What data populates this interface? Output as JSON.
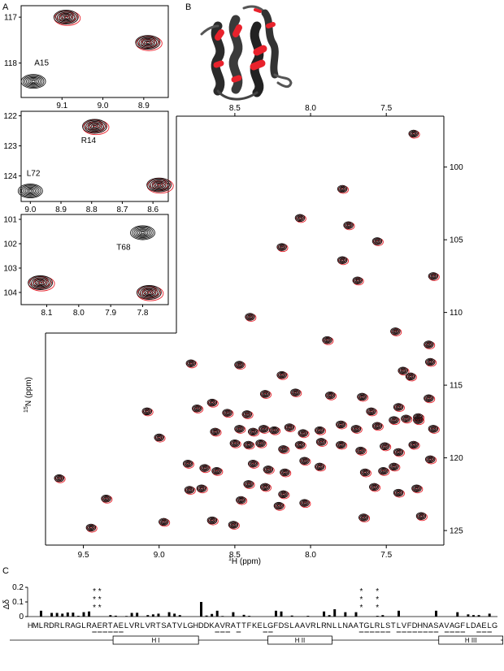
{
  "panels": {
    "A": "A",
    "B": "B",
    "C": "C"
  },
  "colors": {
    "ref": "#111111",
    "pert": "#e8222c",
    "star": "#e8222c",
    "frame": "#000000"
  },
  "main_spectrum": {
    "type": "scatter",
    "xlabel_sup": "1",
    "xlabel": "H (ppm)",
    "ylabel_sup": "15",
    "ylabel": "N (ppm)",
    "xlim": [
      9.75,
      7.12
    ],
    "ylim": [
      96.5,
      126.0
    ],
    "xticks": [
      "9.5",
      "9.0",
      "8.5",
      "8.0",
      "7.5"
    ],
    "xtick_values": [
      9.5,
      9.0,
      8.5,
      8.0,
      7.5
    ],
    "yticks": [
      "100",
      "105",
      "110",
      "115",
      "120",
      "125"
    ],
    "ytick_values": [
      100,
      105,
      110,
      115,
      120,
      125
    ],
    "top_xticks": [
      "8.5",
      "8.0",
      "7.5"
    ],
    "top_xtick_values": [
      8.5,
      8.0,
      7.5
    ],
    "peaks": [
      [
        7.32,
        97.7
      ],
      [
        7.79,
        101.5
      ],
      [
        8.07,
        103.5
      ],
      [
        7.75,
        104.0
      ],
      [
        8.19,
        105.5
      ],
      [
        7.56,
        105.1
      ],
      [
        7.79,
        106.4
      ],
      [
        7.19,
        107.5
      ],
      [
        7.69,
        107.8
      ],
      [
        8.4,
        110.3
      ],
      [
        7.89,
        111.9
      ],
      [
        7.44,
        111.3
      ],
      [
        7.22,
        112.2
      ],
      [
        7.21,
        113.4
      ],
      [
        8.79,
        113.5
      ],
      [
        8.47,
        113.6
      ],
      [
        8.19,
        114.3
      ],
      [
        7.39,
        114.0
      ],
      [
        7.34,
        114.4
      ],
      [
        8.65,
        116.2
      ],
      [
        8.3,
        115.6
      ],
      [
        8.1,
        115.5
      ],
      [
        7.87,
        115.7
      ],
      [
        7.66,
        115.8
      ],
      [
        7.22,
        115.9
      ],
      [
        9.08,
        116.8
      ],
      [
        8.75,
        116.6
      ],
      [
        8.55,
        116.9
      ],
      [
        8.42,
        117.0
      ],
      [
        7.6,
        116.8
      ],
      [
        7.42,
        116.5
      ],
      [
        7.29,
        117.2
      ],
      [
        8.47,
        118.0
      ],
      [
        8.38,
        118.2
      ],
      [
        8.31,
        118.0
      ],
      [
        8.24,
        118.1
      ],
      [
        8.14,
        117.9
      ],
      [
        8.05,
        118.3
      ],
      [
        7.94,
        118.1
      ],
      [
        7.8,
        117.7
      ],
      [
        7.7,
        118.0
      ],
      [
        7.56,
        117.8
      ],
      [
        7.45,
        117.4
      ],
      [
        7.37,
        117.3
      ],
      [
        7.29,
        117.4
      ],
      [
        7.19,
        118.0
      ],
      [
        8.63,
        118.2
      ],
      [
        9.0,
        118.6
      ],
      [
        8.5,
        119.0
      ],
      [
        8.41,
        119.1
      ],
      [
        8.33,
        119.0
      ],
      [
        8.18,
        119.4
      ],
      [
        8.07,
        119.1
      ],
      [
        7.93,
        118.9
      ],
      [
        7.8,
        119.1
      ],
      [
        7.67,
        119.5
      ],
      [
        7.51,
        119.2
      ],
      [
        7.42,
        119.6
      ],
      [
        7.32,
        119.1
      ],
      [
        8.81,
        120.4
      ],
      [
        8.7,
        120.7
      ],
      [
        8.62,
        120.9
      ],
      [
        8.38,
        120.4
      ],
      [
        8.28,
        120.8
      ],
      [
        8.17,
        121.0
      ],
      [
        8.04,
        120.2
      ],
      [
        7.94,
        120.6
      ],
      [
        7.64,
        121.0
      ],
      [
        7.52,
        120.9
      ],
      [
        7.45,
        120.6
      ],
      [
        7.21,
        120.1
      ],
      [
        9.66,
        121.4
      ],
      [
        8.41,
        121.8
      ],
      [
        8.3,
        122.0
      ],
      [
        7.58,
        122.0
      ],
      [
        7.42,
        122.4
      ],
      [
        7.3,
        122.1
      ],
      [
        8.8,
        122.2
      ],
      [
        8.72,
        122.1
      ],
      [
        8.18,
        122.5
      ],
      [
        8.46,
        122.9
      ],
      [
        8.21,
        123.3
      ],
      [
        8.04,
        123.1
      ],
      [
        9.35,
        122.8
      ],
      [
        8.65,
        124.3
      ],
      [
        8.51,
        124.6
      ],
      [
        8.97,
        124.4
      ],
      [
        7.65,
        124.1
      ],
      [
        7.27,
        124.0
      ],
      [
        9.45,
        124.8
      ]
    ]
  },
  "insets": [
    {
      "xlim": [
        9.2,
        8.84
      ],
      "ylim": [
        116.75,
        118.75
      ],
      "xticks": [
        "9.1",
        "9.0",
        "8.9"
      ],
      "xtick_values": [
        9.1,
        9.0,
        8.9
      ],
      "yticks": [
        "117",
        "118"
      ],
      "ytick_values": [
        117,
        118
      ],
      "labels": [
        {
          "text": "A15",
          "x": 9.15,
          "y": 118.05
        }
      ],
      "peaks": [
        [
          9.09,
          117.0,
          1
        ],
        [
          8.89,
          117.55,
          1
        ],
        [
          9.17,
          118.4,
          0
        ]
      ]
    },
    {
      "xlim": [
        9.03,
        8.55
      ],
      "ylim": [
        121.85,
        124.85
      ],
      "xticks": [
        "9.0",
        "8.9",
        "8.8",
        "8.7",
        "8.6"
      ],
      "xtick_values": [
        9.0,
        8.9,
        8.8,
        8.7,
        8.6
      ],
      "yticks": [
        "122",
        "123",
        "124"
      ],
      "ytick_values": [
        122,
        123,
        124
      ],
      "labels": [
        {
          "text": "R14",
          "x": 8.81,
          "y": 122.9
        },
        {
          "text": "L72",
          "x": 8.99,
          "y": 124.0
        }
      ],
      "peaks": [
        [
          8.79,
          122.35,
          1
        ],
        [
          8.58,
          124.3,
          1
        ],
        [
          9.0,
          124.5,
          0
        ]
      ]
    },
    {
      "xlim": [
        8.18,
        7.72
      ],
      "ylim": [
        100.8,
        104.5
      ],
      "xticks": [
        "8.1",
        "8.0",
        "7.9",
        "7.8"
      ],
      "xtick_values": [
        8.1,
        8.0,
        7.9,
        7.8
      ],
      "yticks": [
        "101",
        "102",
        "103",
        "104"
      ],
      "ytick_values": [
        101,
        102,
        103,
        104
      ],
      "labels": [
        {
          "text": "T68",
          "x": 7.86,
          "y": 102.25
        }
      ],
      "peaks": [
        [
          7.8,
          101.55,
          0
        ],
        [
          8.12,
          103.6,
          1
        ],
        [
          7.78,
          104.0,
          1
        ]
      ]
    }
  ],
  "perturbation_chart": {
    "type": "bar",
    "ylabel": "Δδ",
    "ylim": [
      0,
      0.2
    ],
    "yticks": [
      "0.2",
      "0.1",
      "0"
    ],
    "ytick_values": [
      0.2,
      0.1,
      0
    ],
    "sequence": "HMLRDRLRAGLRAERTAELVRLVRTSATVLGHDDKAVRATTFKELGFDSLAAVRLRNLLNAATGLRLSTLVFDHNASAVAGFLDAELG",
    "values": [
      0,
      0,
      0.04,
      0,
      0.025,
      0.025,
      0.02,
      0.028,
      0.027,
      0.005,
      0.03,
      0.035,
      0,
      0,
      0,
      0.01,
      0.006,
      0,
      0.004,
      0.025,
      0.026,
      0,
      0.01,
      0.015,
      0.02,
      0,
      0.03,
      0.02,
      0.01,
      0,
      0,
      0,
      0.1,
      0.007,
      0.018,
      0.04,
      0.004,
      0,
      0.03,
      0,
      0.012,
      0.005,
      0,
      0,
      0,
      0,
      0.04,
      0.035,
      0,
      0.007,
      0,
      0,
      0.005,
      0,
      0,
      0.035,
      0.01,
      0.05,
      0,
      0.03,
      0,
      0.03,
      0,
      0,
      0,
      0.005,
      0.01,
      0,
      0,
      0.04,
      0,
      0,
      0,
      0,
      0,
      0,
      0.04,
      0,
      0,
      0,
      0.03,
      0,
      0.015,
      0.01,
      0.01,
      0,
      0.02,
      0,
      0
    ],
    "stars": [
      12,
      13,
      62,
      65
    ],
    "underlined": [
      12,
      13,
      14,
      15,
      16,
      17,
      35,
      36,
      37,
      39,
      44,
      45,
      62,
      63,
      64,
      65,
      66,
      67,
      69,
      70,
      71,
      72,
      73,
      74,
      75,
      76,
      78,
      79,
      80,
      81,
      84,
      85,
      86
    ],
    "helices": [
      {
        "name": "H I",
        "start": 17,
        "end": 32
      },
      {
        "name": "H II",
        "start": 46,
        "end": 57
      },
      {
        "name": "H III",
        "start": 78,
        "end": 89
      }
    ]
  }
}
